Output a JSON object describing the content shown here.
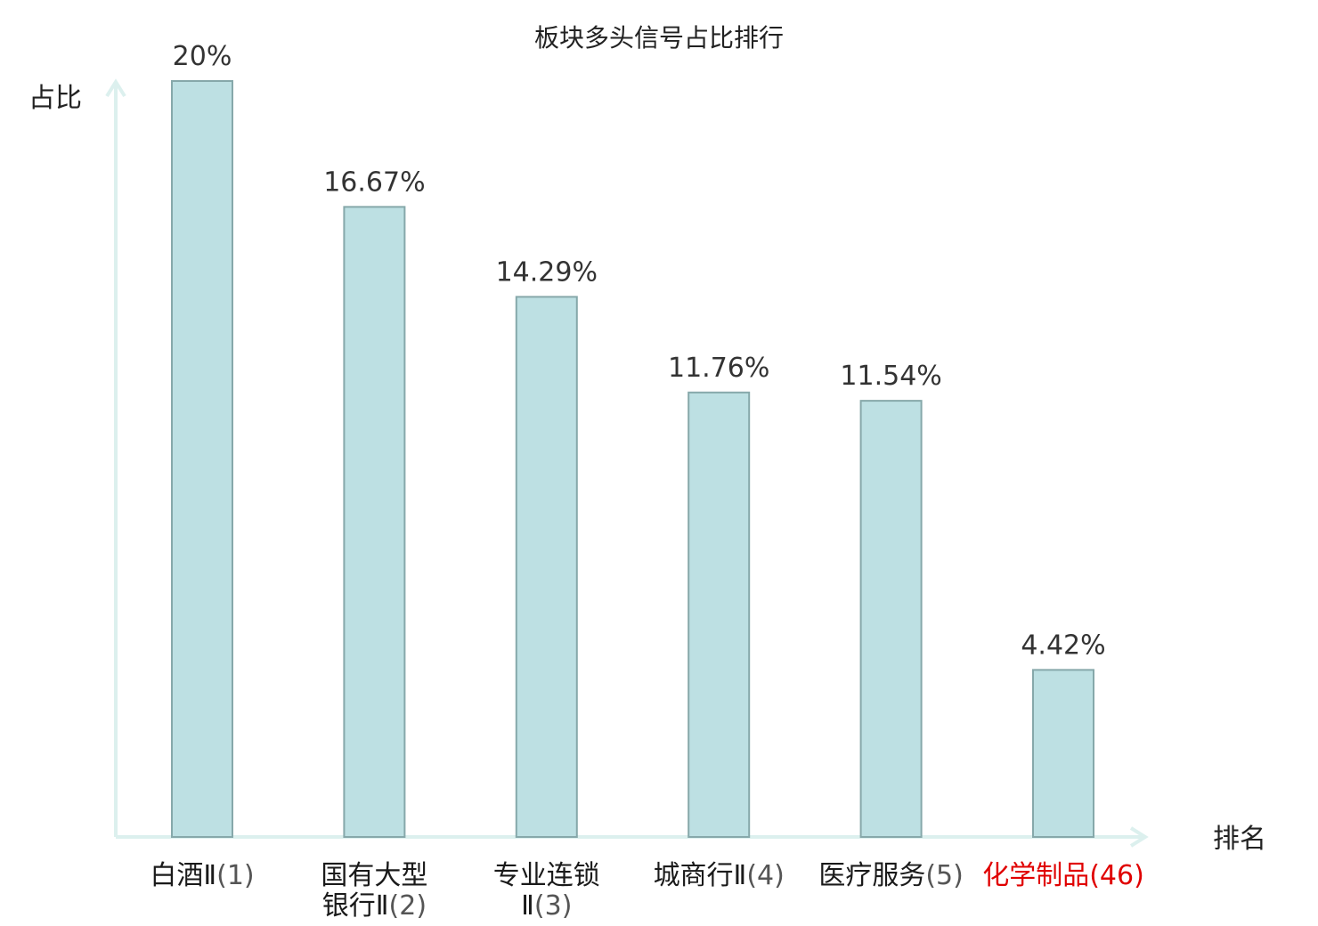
{
  "chart_data": {
    "type": "bar",
    "title": "板块多头信号占比排行",
    "ylabel": "占比",
    "xlabel": "排名",
    "ylim": [
      0,
      20
    ],
    "grid": false,
    "categories": [
      {
        "name_lines": [
          "白酒Ⅱ"
        ],
        "rank": "(1)",
        "highlight": false
      },
      {
        "name_lines": [
          "国有大型",
          "银行Ⅱ"
        ],
        "rank": "(2)",
        "highlight": false
      },
      {
        "name_lines": [
          "专业连锁",
          "Ⅱ"
        ],
        "rank": "(3)",
        "highlight": false
      },
      {
        "name_lines": [
          "城商行Ⅱ"
        ],
        "rank": "(4)",
        "highlight": false
      },
      {
        "name_lines": [
          "医疗服务"
        ],
        "rank": "(5)",
        "highlight": false
      },
      {
        "name_lines": [
          "化学制品"
        ],
        "rank": "(46)",
        "highlight": true
      }
    ],
    "values": [
      20,
      16.67,
      14.29,
      11.76,
      11.54,
      4.42
    ],
    "value_labels": [
      "20%",
      "16.67%",
      "14.29%",
      "11.76%",
      "11.54%",
      "4.42%"
    ],
    "colors": {
      "bar_fill": "#bde0e3",
      "bar_stroke": "#86a8aa",
      "axis": "#dcf0ee",
      "highlight": "#e00000"
    }
  }
}
